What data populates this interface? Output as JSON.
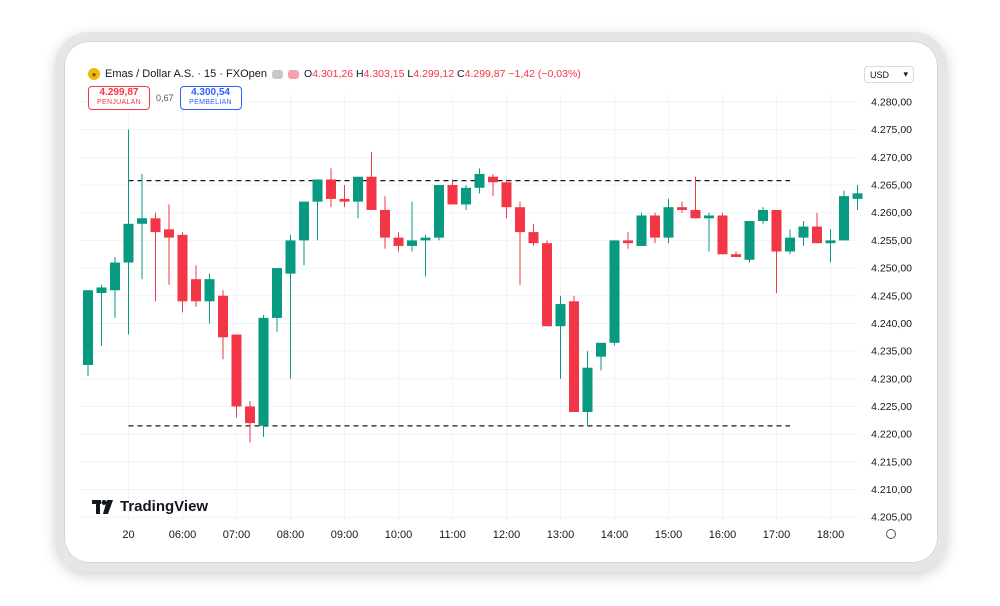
{
  "header": {
    "symbol": "Emas / Dollar A.S. · 15 · FXOpen",
    "o_label": "O",
    "o": "4.301,26",
    "h_label": "H",
    "h": "4.303,15",
    "l_label": "L",
    "l": "4.299,12",
    "c_label": "C",
    "c": "4.299,87",
    "change": "−1,42 (−0,03%)"
  },
  "quote": {
    "sell_price": "4.299,87",
    "sell_label": "PENJUALAN",
    "spread": "0,67",
    "buy_price": "4.300,54",
    "buy_label": "PEMBELIAN"
  },
  "currency": "USD",
  "brand": "TradingView",
  "colors": {
    "up": "#089981",
    "down": "#f23645",
    "grid": "#f0f3fa",
    "level": "#131722"
  },
  "chart_data": {
    "type": "candlestick",
    "ylim": [
      4205,
      4283
    ],
    "y_ticks": [
      "4.280,00",
      "4.275,00",
      "4.270,00",
      "4.265,00",
      "4.260,00",
      "4.255,00",
      "4.250,00",
      "4.245,00",
      "4.240,00",
      "4.235,00",
      "4.230,00",
      "4.225,00",
      "4.220,00",
      "4.215,00",
      "4.210,00",
      "4.205,00"
    ],
    "y_tick_values": [
      4280,
      4275,
      4270,
      4265,
      4260,
      4255,
      4250,
      4245,
      4240,
      4235,
      4230,
      4225,
      4220,
      4215,
      4210,
      4205
    ],
    "x_ticks": [
      "20",
      "06:00",
      "07:00",
      "08:00",
      "09:00",
      "10:00",
      "11:00",
      "12:00",
      "13:00",
      "14:00",
      "15:00",
      "16:00",
      "17:00",
      "18:00"
    ],
    "x_tick_index": [
      3,
      7,
      11,
      15,
      19,
      23,
      27,
      31,
      35,
      39,
      43,
      47,
      51,
      55
    ],
    "levels": [
      {
        "price": 4265.8,
        "from": 3,
        "to": 52
      },
      {
        "price": 4221.5,
        "from": 3,
        "to": 52
      }
    ],
    "candles": [
      [
        4232.5,
        4246.0,
        4230.5,
        4246.0
      ],
      [
        4245.5,
        4247.0,
        4236.0,
        4246.5
      ],
      [
        4246.0,
        4252.0,
        4241.0,
        4251.0
      ],
      [
        4251.0,
        4275.0,
        4238.0,
        4258.0
      ],
      [
        4258.0,
        4267.0,
        4248.0,
        4259.0
      ],
      [
        4259.0,
        4260.0,
        4244.0,
        4256.5
      ],
      [
        4257.0,
        4261.5,
        4247.0,
        4255.5
      ],
      [
        4256.0,
        4256.5,
        4242.0,
        4244.0
      ],
      [
        4248.0,
        4250.5,
        4243.0,
        4244.0
      ],
      [
        4244.0,
        4249.0,
        4240.0,
        4248.0
      ],
      [
        4245.0,
        4246.0,
        4233.5,
        4237.5
      ],
      [
        4238.0,
        4238.0,
        4223.0,
        4225.0
      ],
      [
        4225.0,
        4226.0,
        4218.5,
        4222.0
      ],
      [
        4221.5,
        4241.5,
        4219.5,
        4241.0
      ],
      [
        4241.0,
        4250.0,
        4238.5,
        4250.0
      ],
      [
        4249.0,
        4256.0,
        4230.0,
        4255.0
      ],
      [
        4255.0,
        4262.0,
        4250.5,
        4262.0
      ],
      [
        4262.0,
        4266.0,
        4255.0,
        4266.0
      ],
      [
        4266.0,
        4268.0,
        4261.0,
        4262.5
      ],
      [
        4262.5,
        4265.0,
        4261.0,
        4262.0
      ],
      [
        4262.0,
        4266.5,
        4259.0,
        4266.5
      ],
      [
        4266.5,
        4271.0,
        4260.5,
        4260.5
      ],
      [
        4260.5,
        4263.0,
        4253.5,
        4255.5
      ],
      [
        4255.5,
        4256.5,
        4253.0,
        4254.0
      ],
      [
        4254.0,
        4262.0,
        4253.0,
        4255.0
      ],
      [
        4255.0,
        4256.0,
        4248.5,
        4255.5
      ],
      [
        4255.5,
        4265.0,
        4255.0,
        4265.0
      ],
      [
        4265.0,
        4266.0,
        4261.5,
        4261.5
      ],
      [
        4261.5,
        4265.0,
        4260.5,
        4264.5
      ],
      [
        4264.5,
        4268.0,
        4263.5,
        4267.0
      ],
      [
        4266.5,
        4267.0,
        4263.0,
        4265.5
      ],
      [
        4265.5,
        4266.0,
        4259.0,
        4261.0
      ],
      [
        4261.0,
        4262.0,
        4247.0,
        4256.5
      ],
      [
        4256.5,
        4258.0,
        4254.0,
        4254.5
      ],
      [
        4254.5,
        4255.0,
        4239.5,
        4239.5
      ],
      [
        4239.5,
        4245.0,
        4230.0,
        4243.5
      ],
      [
        4244.0,
        4245.0,
        4224.0,
        4224.0
      ],
      [
        4224.0,
        4235.0,
        4221.5,
        4232.0
      ],
      [
        4234.0,
        4236.5,
        4231.5,
        4236.5
      ],
      [
        4236.5,
        4255.0,
        4236.0,
        4255.0
      ],
      [
        4255.0,
        4256.5,
        4253.5,
        4254.5
      ],
      [
        4254.0,
        4260.0,
        4254.0,
        4259.5
      ],
      [
        4259.5,
        4260.0,
        4254.5,
        4255.5
      ],
      [
        4255.5,
        4262.5,
        4254.5,
        4261.0
      ],
      [
        4261.0,
        4262.0,
        4260.0,
        4260.5
      ],
      [
        4260.5,
        4266.5,
        4259.0,
        4259.0
      ],
      [
        4259.0,
        4260.0,
        4253.0,
        4259.5
      ],
      [
        4259.5,
        4260.0,
        4252.5,
        4252.5
      ],
      [
        4252.5,
        4253.0,
        4252.0,
        4252.0
      ],
      [
        4251.5,
        4258.5,
        4251.0,
        4258.5
      ],
      [
        4258.5,
        4261.0,
        4258.0,
        4260.5
      ],
      [
        4260.5,
        4260.5,
        4245.5,
        4253.0
      ],
      [
        4253.0,
        4257.0,
        4252.5,
        4255.5
      ],
      [
        4255.5,
        4258.5,
        4254.0,
        4257.5
      ],
      [
        4257.5,
        4260.0,
        4254.5,
        4254.5
      ],
      [
        4254.5,
        4257.0,
        4251.0,
        4255.0
      ],
      [
        4255.0,
        4264.0,
        4255.0,
        4263.0
      ],
      [
        4262.5,
        4265.0,
        4260.5,
        4263.5
      ]
    ]
  }
}
